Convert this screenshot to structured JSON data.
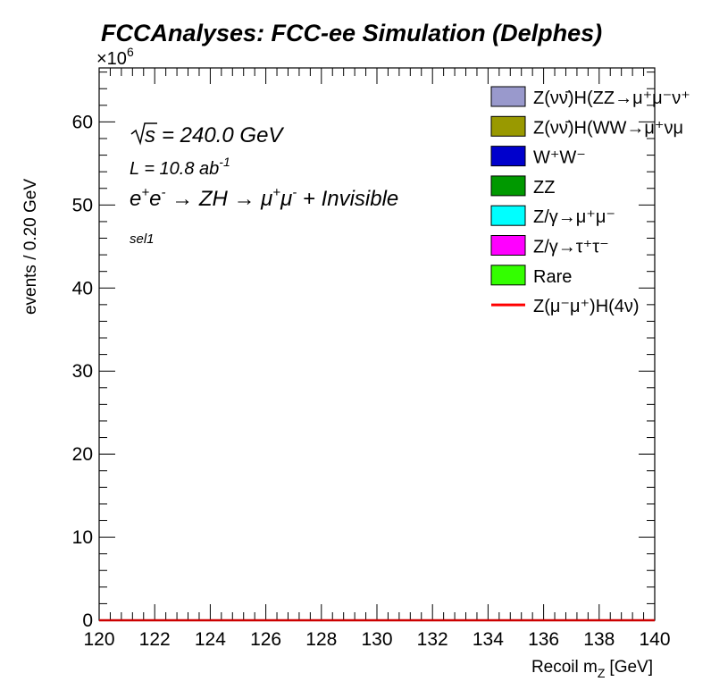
{
  "chart_data": {
    "type": "histogram",
    "title": "FCCAnalyses: FCC-ee Simulation (Delphes)",
    "xlabel": "Recoil m",
    "xlabel_sub": "Z",
    "xlabel_unit": "[GeV]",
    "ylabel": "events / 0.20 GeV",
    "y_multiplier": "×10",
    "y_multiplier_exp": "6",
    "xlim": [
      120,
      140
    ],
    "ylim": [
      0,
      66.5
    ],
    "x_ticks": [
      "120",
      "122",
      "124",
      "126",
      "128",
      "130",
      "132",
      "134",
      "136",
      "138",
      "140"
    ],
    "y_ticks": [
      "0",
      "10",
      "20",
      "30",
      "40",
      "50",
      "60"
    ],
    "annotations": {
      "sqrt_s": "= 240.0 GeV",
      "lumi": "L = 10.8 ab",
      "lumi_exp": "-1",
      "process": "e+e- → ZH → μ+μ- + Invisible",
      "selection": "sel1"
    },
    "legend": [
      {
        "label": "Z(νν̄)H(ZZ→μ⁺μ⁻ν⁺",
        "color": "#9999cc",
        "style": "fill"
      },
      {
        "label": "Z(νν̄)H(WW→μ⁺νμ",
        "color": "#999900",
        "style": "fill"
      },
      {
        "label": "W⁺W⁻",
        "color": "#0000cc",
        "style": "fill"
      },
      {
        "label": "ZZ",
        "color": "#009900",
        "style": "fill"
      },
      {
        "label": "Z/γ→μ⁺μ⁻",
        "color": "#00ffff",
        "style": "fill"
      },
      {
        "label": "Z/γ→τ⁺τ⁻",
        "color": "#ff00ff",
        "style": "fill"
      },
      {
        "label": "Rare",
        "color": "#33ff00",
        "style": "fill"
      },
      {
        "label": "Z(μ⁻μ⁺)H(4ν)",
        "color": "#ff0000",
        "style": "line"
      }
    ],
    "series": [
      {
        "name": "Z(μ⁻μ⁺)H(4ν)",
        "x": [
          120,
          140
        ],
        "values": [
          0,
          0
        ]
      }
    ]
  }
}
